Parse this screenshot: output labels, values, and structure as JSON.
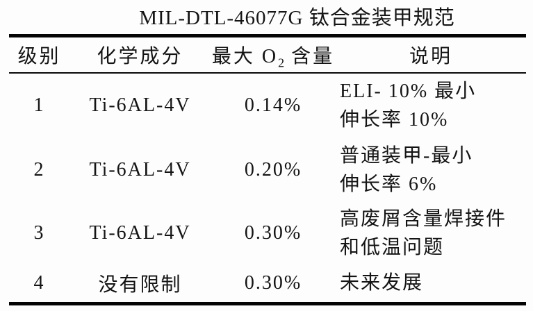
{
  "title": "MIL-DTL-46077G 钛合金装甲规范",
  "table": {
    "headers": {
      "grade": "级别",
      "composition": "化学成分",
      "o2_prefix": "最大 O",
      "o2_sub": "2",
      "o2_suffix": " 含量",
      "description": "说明"
    },
    "rows": [
      {
        "grade": "1",
        "composition": "Ti-6AL-4V",
        "max_o2": "0.14%",
        "description": "ELI- 10% 最小\n伸长率 10%"
      },
      {
        "grade": "2",
        "composition": "Ti-6AL-4V",
        "max_o2": "0.20%",
        "description": "普通装甲-最小\n伸长率 6%"
      },
      {
        "grade": "3",
        "composition": "Ti-6AL-4V",
        "max_o2": "0.30%",
        "description": "高废屑含量焊接件\n和低温问题"
      },
      {
        "grade": "4",
        "composition": "没有限制",
        "max_o2": "0.30%",
        "description": "未来发展"
      }
    ]
  },
  "colors": {
    "rule": "#040404",
    "text": "#141414",
    "background": "#fdfdfd"
  }
}
